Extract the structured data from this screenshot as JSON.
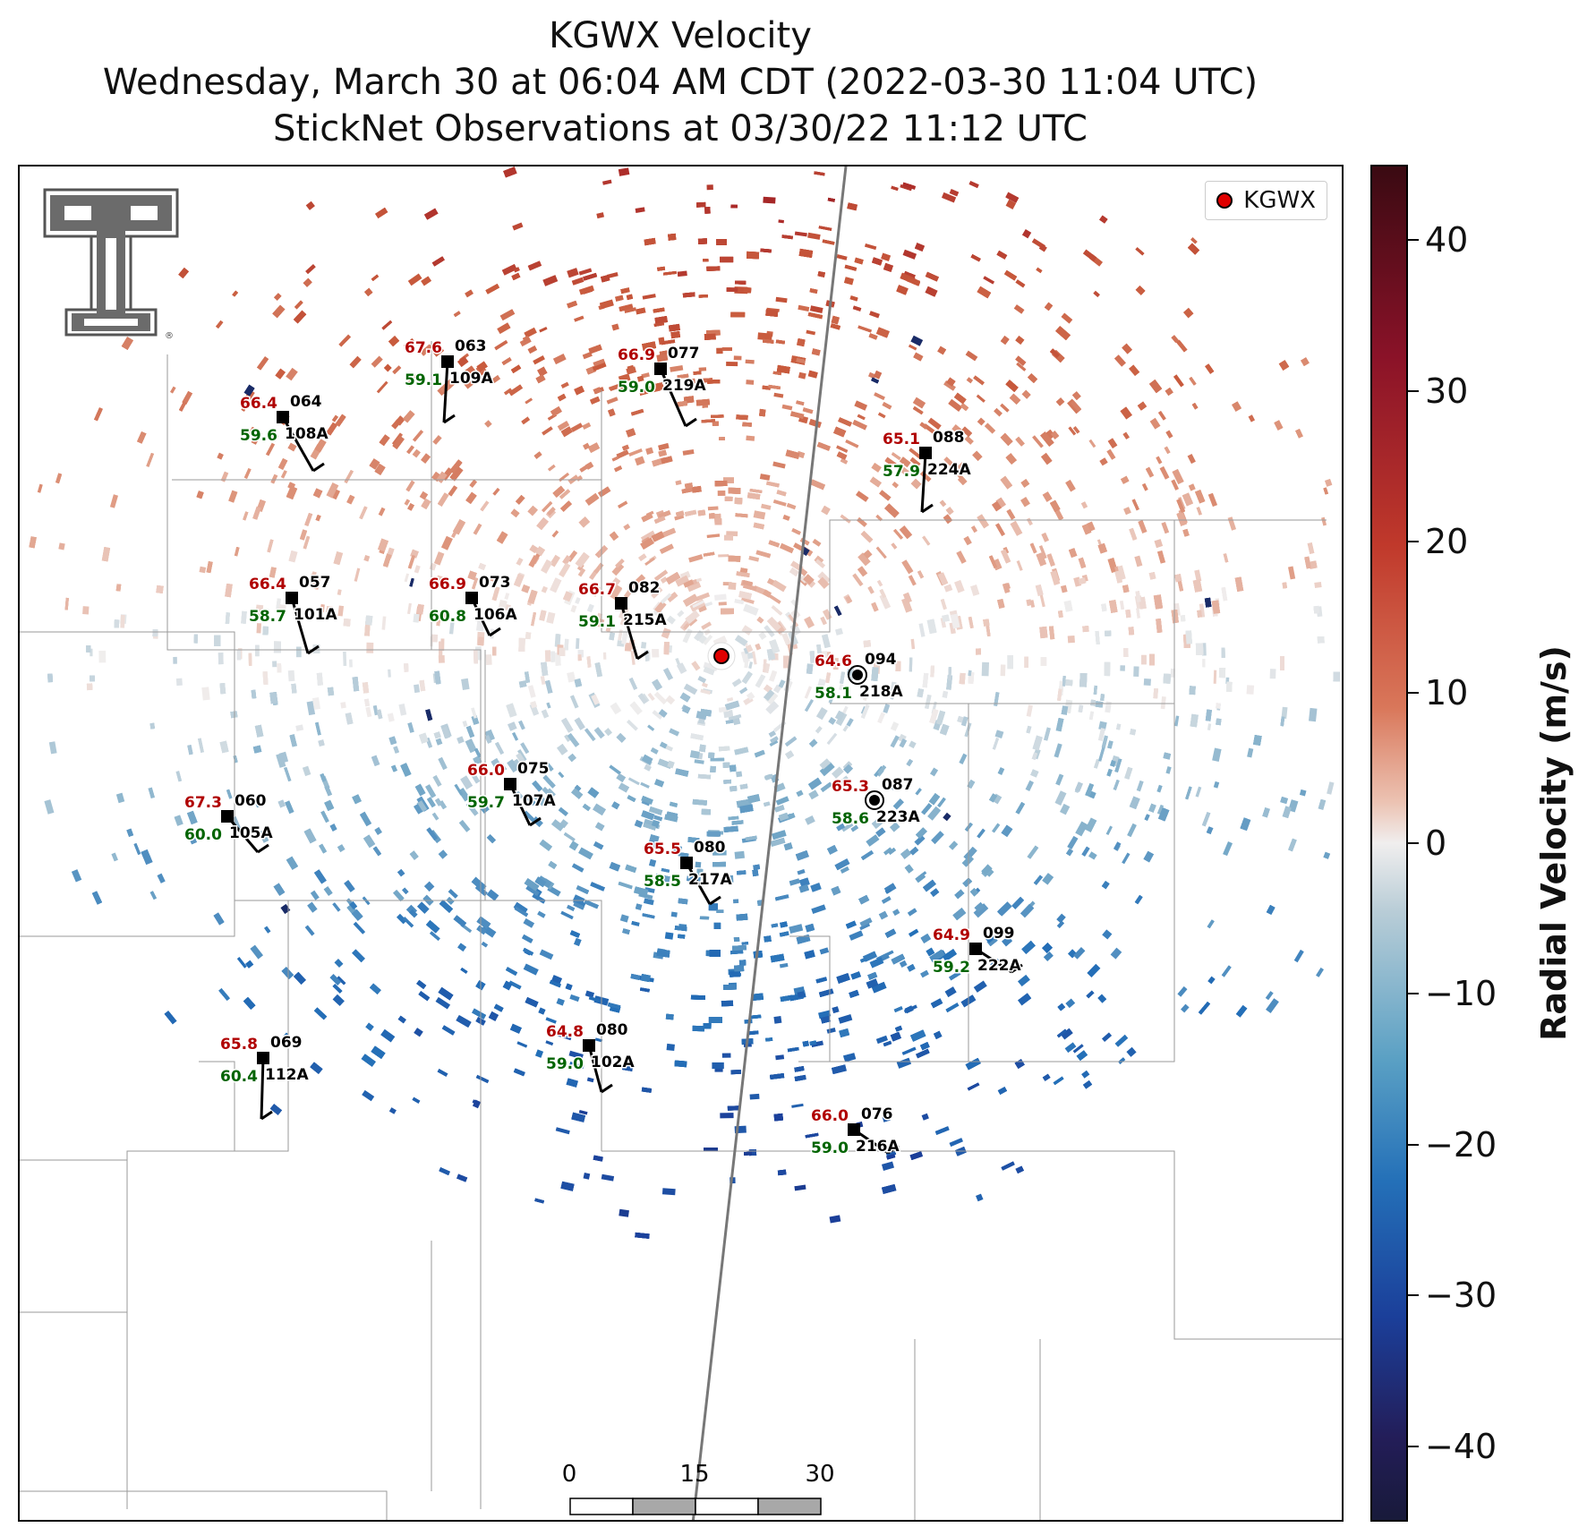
{
  "title": {
    "line1": "KGWX Velocity",
    "line2": "Wednesday, March 30 at 06:04 AM CDT (2022-03-30 11:04 UTC)",
    "line3": "StickNet Observations at 03/30/22 11:12 UTC"
  },
  "legend": {
    "label": "KGWX",
    "marker_color": "#e00000"
  },
  "colorbar": {
    "label": "Radial Velocity (m/s)",
    "min": -45,
    "max": 45,
    "ticks": [
      {
        "value": 40,
        "label": "40"
      },
      {
        "value": 30,
        "label": "30"
      },
      {
        "value": 20,
        "label": "20"
      },
      {
        "value": 10,
        "label": "10"
      },
      {
        "value": 0,
        "label": "0"
      },
      {
        "value": -10,
        "label": "−10"
      },
      {
        "value": -20,
        "label": "−20"
      },
      {
        "value": -30,
        "label": "−30"
      },
      {
        "value": -40,
        "label": "−40"
      }
    ]
  },
  "scalebar": {
    "ticks": [
      "0",
      "15",
      "30"
    ],
    "unit": "km"
  },
  "colors": {
    "temperature": "#b00000",
    "dewpoint": "#006400",
    "label": "#000000"
  },
  "stations": [
    {
      "id": "109A",
      "temp": "67.6",
      "dew": "59.1",
      "dir": "063"
    },
    {
      "id": "219A",
      "temp": "66.9",
      "dew": "59.0",
      "dir": "077"
    },
    {
      "id": "108A",
      "temp": "66.4",
      "dew": "59.6",
      "dir": "064"
    },
    {
      "id": "224A",
      "temp": "65.1",
      "dew": "57.9",
      "dir": "088"
    },
    {
      "id": "101A",
      "temp": "66.4",
      "dew": "58.7",
      "dir": "057"
    },
    {
      "id": "106A",
      "temp": "66.9",
      "dew": "60.8",
      "dir": "073"
    },
    {
      "id": "215A",
      "temp": "66.7",
      "dew": "59.1",
      "dir": "082"
    },
    {
      "id": "218A",
      "temp": "64.6",
      "dew": "58.1",
      "dir": "094"
    },
    {
      "id": "107A",
      "temp": "66.0",
      "dew": "59.7",
      "dir": "075"
    },
    {
      "id": "223A",
      "temp": "65.3",
      "dew": "58.6",
      "dir": "087"
    },
    {
      "id": "105A",
      "temp": "67.3",
      "dew": "60.0",
      "dir": "060"
    },
    {
      "id": "217A",
      "temp": "65.5",
      "dew": "58.5",
      "dir": "080"
    },
    {
      "id": "222A",
      "temp": "64.9",
      "dew": "59.2",
      "dir": "099"
    },
    {
      "id": "112A",
      "temp": "65.8",
      "dew": "60.4",
      "dir": "069"
    },
    {
      "id": "102A",
      "temp": "64.8",
      "dew": "59.0",
      "dir": "080"
    },
    {
      "id": "216A",
      "temp": "66.0",
      "dew": "59.0",
      "dir": "076"
    }
  ]
}
